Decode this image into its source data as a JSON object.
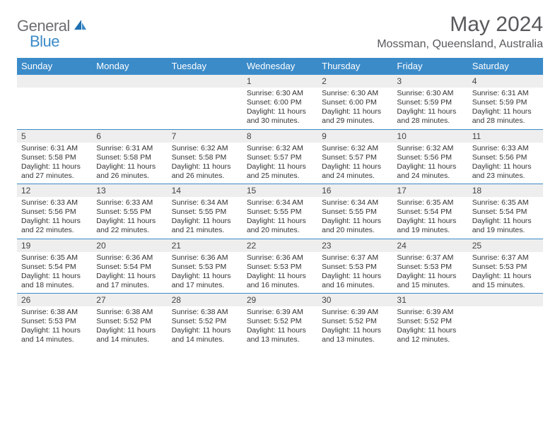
{
  "logo": {
    "text1": "General",
    "text2": "Blue"
  },
  "title": "May 2024",
  "location": "Mossman, Queensland, Australia",
  "colors": {
    "header_bg": "#3b8bc9",
    "header_text": "#ffffff",
    "daynum_bg": "#eeeeee",
    "row_divider": "#3b8bc9",
    "page_bg": "#ffffff",
    "title_color": "#58595b",
    "logo_gray": "#6d6e71",
    "logo_blue": "#3b8bc9",
    "body_text": "#333333"
  },
  "typography": {
    "title_fontsize": 30,
    "location_fontsize": 16,
    "dayheader_fontsize": 13,
    "daynum_fontsize": 12,
    "cell_fontsize": 10.5,
    "logo_fontsize": 22
  },
  "dayHeaders": [
    "Sunday",
    "Monday",
    "Tuesday",
    "Wednesday",
    "Thursday",
    "Friday",
    "Saturday"
  ],
  "weeks": [
    [
      null,
      null,
      null,
      {
        "num": "1",
        "sunrise": "Sunrise: 6:30 AM",
        "sunset": "Sunset: 6:00 PM",
        "day1": "Daylight: 11 hours",
        "day2": "and 30 minutes."
      },
      {
        "num": "2",
        "sunrise": "Sunrise: 6:30 AM",
        "sunset": "Sunset: 6:00 PM",
        "day1": "Daylight: 11 hours",
        "day2": "and 29 minutes."
      },
      {
        "num": "3",
        "sunrise": "Sunrise: 6:30 AM",
        "sunset": "Sunset: 5:59 PM",
        "day1": "Daylight: 11 hours",
        "day2": "and 28 minutes."
      },
      {
        "num": "4",
        "sunrise": "Sunrise: 6:31 AM",
        "sunset": "Sunset: 5:59 PM",
        "day1": "Daylight: 11 hours",
        "day2": "and 28 minutes."
      }
    ],
    [
      {
        "num": "5",
        "sunrise": "Sunrise: 6:31 AM",
        "sunset": "Sunset: 5:58 PM",
        "day1": "Daylight: 11 hours",
        "day2": "and 27 minutes."
      },
      {
        "num": "6",
        "sunrise": "Sunrise: 6:31 AM",
        "sunset": "Sunset: 5:58 PM",
        "day1": "Daylight: 11 hours",
        "day2": "and 26 minutes."
      },
      {
        "num": "7",
        "sunrise": "Sunrise: 6:32 AM",
        "sunset": "Sunset: 5:58 PM",
        "day1": "Daylight: 11 hours",
        "day2": "and 26 minutes."
      },
      {
        "num": "8",
        "sunrise": "Sunrise: 6:32 AM",
        "sunset": "Sunset: 5:57 PM",
        "day1": "Daylight: 11 hours",
        "day2": "and 25 minutes."
      },
      {
        "num": "9",
        "sunrise": "Sunrise: 6:32 AM",
        "sunset": "Sunset: 5:57 PM",
        "day1": "Daylight: 11 hours",
        "day2": "and 24 minutes."
      },
      {
        "num": "10",
        "sunrise": "Sunrise: 6:32 AM",
        "sunset": "Sunset: 5:56 PM",
        "day1": "Daylight: 11 hours",
        "day2": "and 24 minutes."
      },
      {
        "num": "11",
        "sunrise": "Sunrise: 6:33 AM",
        "sunset": "Sunset: 5:56 PM",
        "day1": "Daylight: 11 hours",
        "day2": "and 23 minutes."
      }
    ],
    [
      {
        "num": "12",
        "sunrise": "Sunrise: 6:33 AM",
        "sunset": "Sunset: 5:56 PM",
        "day1": "Daylight: 11 hours",
        "day2": "and 22 minutes."
      },
      {
        "num": "13",
        "sunrise": "Sunrise: 6:33 AM",
        "sunset": "Sunset: 5:55 PM",
        "day1": "Daylight: 11 hours",
        "day2": "and 22 minutes."
      },
      {
        "num": "14",
        "sunrise": "Sunrise: 6:34 AM",
        "sunset": "Sunset: 5:55 PM",
        "day1": "Daylight: 11 hours",
        "day2": "and 21 minutes."
      },
      {
        "num": "15",
        "sunrise": "Sunrise: 6:34 AM",
        "sunset": "Sunset: 5:55 PM",
        "day1": "Daylight: 11 hours",
        "day2": "and 20 minutes."
      },
      {
        "num": "16",
        "sunrise": "Sunrise: 6:34 AM",
        "sunset": "Sunset: 5:55 PM",
        "day1": "Daylight: 11 hours",
        "day2": "and 20 minutes."
      },
      {
        "num": "17",
        "sunrise": "Sunrise: 6:35 AM",
        "sunset": "Sunset: 5:54 PM",
        "day1": "Daylight: 11 hours",
        "day2": "and 19 minutes."
      },
      {
        "num": "18",
        "sunrise": "Sunrise: 6:35 AM",
        "sunset": "Sunset: 5:54 PM",
        "day1": "Daylight: 11 hours",
        "day2": "and 19 minutes."
      }
    ],
    [
      {
        "num": "19",
        "sunrise": "Sunrise: 6:35 AM",
        "sunset": "Sunset: 5:54 PM",
        "day1": "Daylight: 11 hours",
        "day2": "and 18 minutes."
      },
      {
        "num": "20",
        "sunrise": "Sunrise: 6:36 AM",
        "sunset": "Sunset: 5:54 PM",
        "day1": "Daylight: 11 hours",
        "day2": "and 17 minutes."
      },
      {
        "num": "21",
        "sunrise": "Sunrise: 6:36 AM",
        "sunset": "Sunset: 5:53 PM",
        "day1": "Daylight: 11 hours",
        "day2": "and 17 minutes."
      },
      {
        "num": "22",
        "sunrise": "Sunrise: 6:36 AM",
        "sunset": "Sunset: 5:53 PM",
        "day1": "Daylight: 11 hours",
        "day2": "and 16 minutes."
      },
      {
        "num": "23",
        "sunrise": "Sunrise: 6:37 AM",
        "sunset": "Sunset: 5:53 PM",
        "day1": "Daylight: 11 hours",
        "day2": "and 16 minutes."
      },
      {
        "num": "24",
        "sunrise": "Sunrise: 6:37 AM",
        "sunset": "Sunset: 5:53 PM",
        "day1": "Daylight: 11 hours",
        "day2": "and 15 minutes."
      },
      {
        "num": "25",
        "sunrise": "Sunrise: 6:37 AM",
        "sunset": "Sunset: 5:53 PM",
        "day1": "Daylight: 11 hours",
        "day2": "and 15 minutes."
      }
    ],
    [
      {
        "num": "26",
        "sunrise": "Sunrise: 6:38 AM",
        "sunset": "Sunset: 5:53 PM",
        "day1": "Daylight: 11 hours",
        "day2": "and 14 minutes."
      },
      {
        "num": "27",
        "sunrise": "Sunrise: 6:38 AM",
        "sunset": "Sunset: 5:52 PM",
        "day1": "Daylight: 11 hours",
        "day2": "and 14 minutes."
      },
      {
        "num": "28",
        "sunrise": "Sunrise: 6:38 AM",
        "sunset": "Sunset: 5:52 PM",
        "day1": "Daylight: 11 hours",
        "day2": "and 14 minutes."
      },
      {
        "num": "29",
        "sunrise": "Sunrise: 6:39 AM",
        "sunset": "Sunset: 5:52 PM",
        "day1": "Daylight: 11 hours",
        "day2": "and 13 minutes."
      },
      {
        "num": "30",
        "sunrise": "Sunrise: 6:39 AM",
        "sunset": "Sunset: 5:52 PM",
        "day1": "Daylight: 11 hours",
        "day2": "and 13 minutes."
      },
      {
        "num": "31",
        "sunrise": "Sunrise: 6:39 AM",
        "sunset": "Sunset: 5:52 PM",
        "day1": "Daylight: 11 hours",
        "day2": "and 12 minutes."
      },
      null
    ]
  ]
}
